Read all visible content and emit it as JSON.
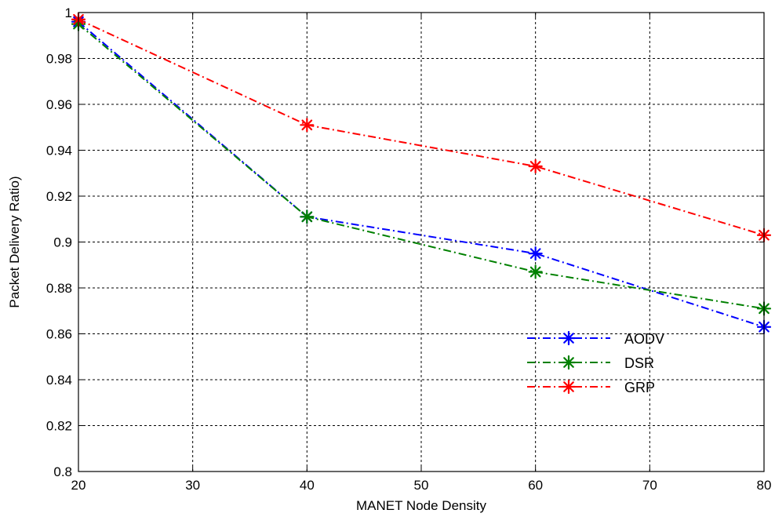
{
  "chart_data": {
    "type": "line",
    "title": "",
    "xlabel": "MANET Node Density",
    "ylabel": "Packet Delivery Ratio)",
    "xlim": [
      20,
      80
    ],
    "ylim": [
      0.8,
      1.0
    ],
    "xticks": [
      20,
      30,
      40,
      50,
      60,
      70,
      80
    ],
    "yticks": [
      0.8,
      0.82,
      0.84,
      0.86,
      0.88,
      0.9,
      0.92,
      0.94,
      0.96,
      0.98,
      1
    ],
    "x": [
      20,
      40,
      60,
      80
    ],
    "grid": true,
    "legend_position": "lower-right",
    "series": [
      {
        "name": "AODV",
        "color": "#0000ff",
        "marker": "star",
        "line_style": "dash-dot",
        "values": [
          0.996,
          0.911,
          0.895,
          0.863
        ]
      },
      {
        "name": "DSR",
        "color": "#008000",
        "marker": "star",
        "line_style": "dash-dot",
        "values": [
          0.995,
          0.911,
          0.887,
          0.871
        ]
      },
      {
        "name": "GRP",
        "color": "#ff0000",
        "marker": "star",
        "line_style": "dash-dot",
        "values": [
          0.997,
          0.951,
          0.933,
          0.903
        ]
      }
    ]
  }
}
